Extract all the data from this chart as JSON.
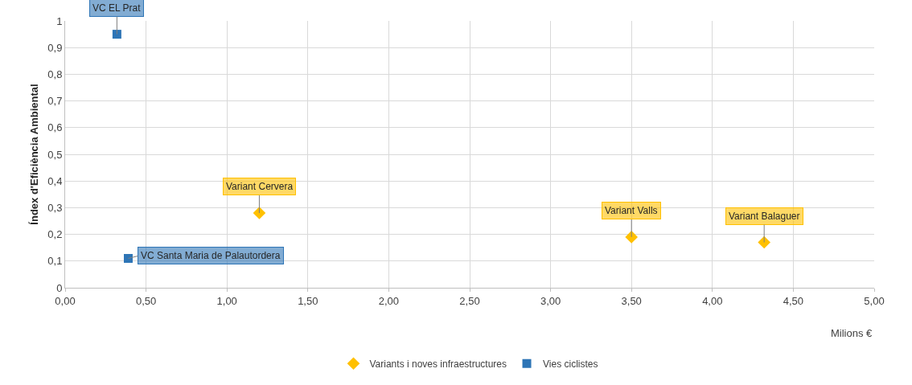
{
  "chart_data": {
    "type": "scatter",
    "xlabel": "Milions €",
    "ylabel": "Índex d'Eficiència Ambiental",
    "xlim": [
      0,
      5
    ],
    "xticks": [
      {
        "value": 0,
        "label": "0,00"
      },
      {
        "value": 0.5,
        "label": "0,50"
      },
      {
        "value": 1,
        "label": "1,00"
      },
      {
        "value": 1.5,
        "label": "1,50"
      },
      {
        "value": 2,
        "label": "2,00"
      },
      {
        "value": 2.5,
        "label": "2,50"
      },
      {
        "value": 3,
        "label": "3,00"
      },
      {
        "value": 3.5,
        "label": "3,50"
      },
      {
        "value": 4,
        "label": "4,00"
      },
      {
        "value": 4.5,
        "label": "4,50"
      },
      {
        "value": 5,
        "label": "5,00"
      }
    ],
    "ylim": [
      0,
      1
    ],
    "yticks": [
      0,
      {
        "value": 0.1,
        "label": "0,1"
      },
      {
        "value": 0.2,
        "label": "0,2"
      },
      {
        "value": 0.3,
        "label": "0,3"
      },
      {
        "value": 0.4,
        "label": "0,4"
      },
      {
        "value": 0.5,
        "label": "0,5"
      },
      {
        "value": 0.6,
        "label": "0,6"
      },
      {
        "value": 0.7,
        "label": "0,7"
      },
      {
        "value": 0.8,
        "label": "0,8"
      },
      {
        "value": 0.9,
        "label": "0,9"
      },
      1
    ],
    "grid": true,
    "legend": "bottom",
    "series": [
      {
        "name": "Variants i noves infraestructures",
        "color": "#ffc000",
        "marker": "diamond",
        "x": [
          1.2,
          3.5,
          4.32
        ],
        "values": [
          0.28,
          0.19,
          0.17
        ]
      },
      {
        "name": "Vies ciclistes",
        "color": "#2e75b6",
        "marker": "square",
        "x": [
          0.32,
          0.39
        ],
        "values": [
          0.95,
          0.11
        ]
      }
    ],
    "annotations": [
      {
        "text": "VC EL Prat",
        "x": 0.32,
        "y": 0.95
      },
      {
        "text": "VC Santa Maria de Palautordera",
        "x": 0.39,
        "y": 0.11
      },
      {
        "text": "Variant Cervera",
        "x": 1.2,
        "y": 0.28
      },
      {
        "text": "Variant Valls",
        "x": 3.5,
        "y": 0.19
      },
      {
        "text": "Variant Balaguer",
        "x": 4.32,
        "y": 0.17
      }
    ]
  }
}
